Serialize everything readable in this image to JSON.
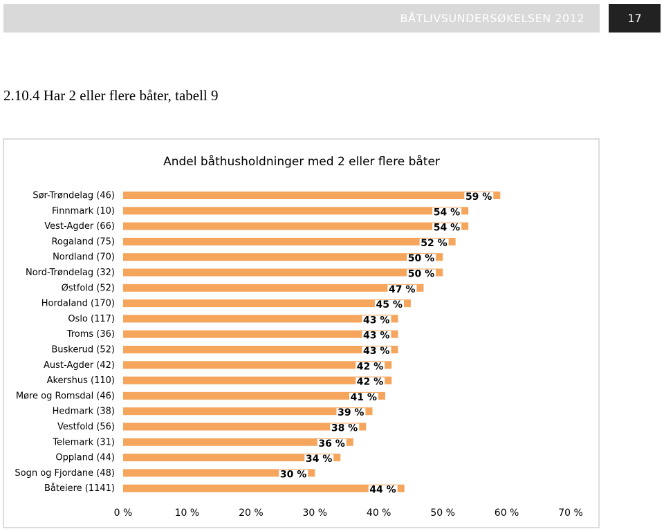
{
  "header": {
    "title": "BÅTLIVSUNDERSØKELSEN 2012",
    "page": "17"
  },
  "heading": "2.10.4 Har 2 eller flere båter, tabell 9",
  "chart_data": {
    "type": "bar",
    "orientation": "horizontal",
    "title": "Andel båthusholdninger med 2 eller flere båter",
    "categories": [
      "Sør-Trøndelag (46)",
      "Finnmark (10)",
      "Vest-Agder (66)",
      "Rogaland (75)",
      "Nordland (70)",
      "Nord-Trøndelag (32)",
      "Østfold (52)",
      "Hordaland (170)",
      "Oslo (117)",
      "Troms (36)",
      "Buskerud (52)",
      "Aust-Agder (42)",
      "Akershus (110)",
      "Møre og Romsdal (46)",
      "Hedmark (38)",
      "Vestfold (56)",
      "Telemark (31)",
      "Oppland (44)",
      "Sogn og Fjordane (48)",
      "Båteiere (1141)"
    ],
    "values": [
      59,
      54,
      54,
      52,
      50,
      50,
      47,
      45,
      43,
      43,
      43,
      42,
      42,
      41,
      39,
      38,
      36,
      34,
      30,
      44
    ],
    "value_labels": [
      "59 %",
      "54 %",
      "54 %",
      "52 %",
      "50 %",
      "50 %",
      "47 %",
      "45 %",
      "43 %",
      "43 %",
      "43 %",
      "42 %",
      "42 %",
      "41 %",
      "39 %",
      "38 %",
      "36 %",
      "34 %",
      "30 %",
      "44 %"
    ],
    "color": "#f5a55c",
    "xlim": [
      0,
      70
    ],
    "xticks": [
      {
        "value": 0,
        "label": "0 %"
      },
      {
        "value": 10,
        "label": "10 %"
      },
      {
        "value": 20,
        "label": "20 %"
      },
      {
        "value": 30,
        "label": "30 %"
      },
      {
        "value": 40,
        "label": "40 %"
      },
      {
        "value": 50,
        "label": "50 %"
      },
      {
        "value": 60,
        "label": "60 %"
      },
      {
        "value": 70,
        "label": "70 %"
      }
    ],
    "grid": false
  }
}
